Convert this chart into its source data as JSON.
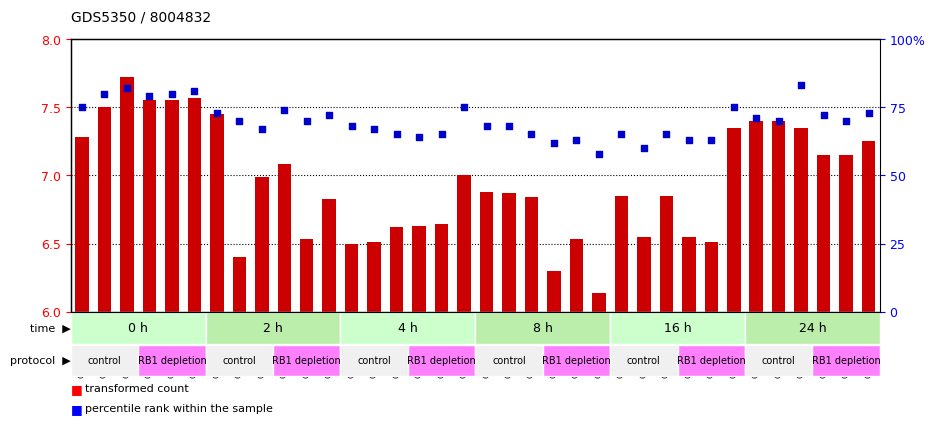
{
  "title": "GDS5350 / 8004832",
  "samples": [
    "GSM1220792",
    "GSM1220798",
    "GSM1220816",
    "GSM1220804",
    "GSM1220810",
    "GSM1220822",
    "GSM1220793",
    "GSM1220799",
    "GSM1220817",
    "GSM1220805",
    "GSM1220811",
    "GSM1220823",
    "GSM1220794",
    "GSM1220800",
    "GSM1220818",
    "GSM1220806",
    "GSM1220812",
    "GSM1220824",
    "GSM1220795",
    "GSM1220801",
    "GSM1220819",
    "GSM1220807",
    "GSM1220813",
    "GSM1220825",
    "GSM1220796",
    "GSM1220802",
    "GSM1220820",
    "GSM1220808",
    "GSM1220814",
    "GSM1220826",
    "GSM1220797",
    "GSM1220803",
    "GSM1220821",
    "GSM1220809",
    "GSM1220815",
    "GSM1220827"
  ],
  "bar_values": [
    7.28,
    7.5,
    7.72,
    7.55,
    7.55,
    7.57,
    7.45,
    6.4,
    6.99,
    7.08,
    6.53,
    6.83,
    6.5,
    6.51,
    6.62,
    6.63,
    6.64,
    7.0,
    6.88,
    6.87,
    6.84,
    6.3,
    6.53,
    6.14,
    6.85,
    6.55,
    6.85,
    6.55,
    6.51,
    7.35,
    7.4,
    7.4,
    7.35,
    7.15,
    7.15,
    7.25
  ],
  "percentile_values": [
    75,
    80,
    82,
    79,
    80,
    81,
    73,
    70,
    67,
    74,
    70,
    72,
    68,
    67,
    65,
    64,
    65,
    75,
    68,
    68,
    65,
    62,
    63,
    58,
    65,
    60,
    65,
    63,
    63,
    75,
    71,
    70,
    83,
    72,
    70,
    73
  ],
  "ylim_left": [
    6.0,
    8.0
  ],
  "ylim_right": [
    0,
    100
  ],
  "bar_color": "#cc0000",
  "dot_color": "#0000cc",
  "bg_color": "#ffffff",
  "grid_color": "#000000",
  "time_groups": [
    {
      "label": "0 h",
      "start": 0,
      "end": 6
    },
    {
      "label": "2 h",
      "start": 6,
      "end": 12
    },
    {
      "label": "4 h",
      "start": 12,
      "end": 18
    },
    {
      "label": "8 h",
      "start": 18,
      "end": 24
    },
    {
      "label": "16 h",
      "start": 24,
      "end": 30
    },
    {
      "label": "24 h",
      "start": 30,
      "end": 36
    }
  ],
  "protocol_groups": [
    {
      "label": "control",
      "start": 0,
      "end": 3,
      "color": "#f0f0f0"
    },
    {
      "label": "RB1 depletion",
      "start": 3,
      "end": 6,
      "color": "#ff80ff"
    },
    {
      "label": "control",
      "start": 6,
      "end": 9,
      "color": "#f0f0f0"
    },
    {
      "label": "RB1 depletion",
      "start": 9,
      "end": 12,
      "color": "#ff80ff"
    },
    {
      "label": "control",
      "start": 12,
      "end": 15,
      "color": "#f0f0f0"
    },
    {
      "label": "RB1 depletion",
      "start": 15,
      "end": 18,
      "color": "#ff80ff"
    },
    {
      "label": "control",
      "start": 18,
      "end": 21,
      "color": "#f0f0f0"
    },
    {
      "label": "RB1 depletion",
      "start": 21,
      "end": 24,
      "color": "#ff80ff"
    },
    {
      "label": "control",
      "start": 24,
      "end": 27,
      "color": "#f0f0f0"
    },
    {
      "label": "RB1 depletion",
      "start": 27,
      "end": 30,
      "color": "#ff80ff"
    },
    {
      "label": "control",
      "start": 30,
      "end": 33,
      "color": "#f0f0f0"
    },
    {
      "label": "RB1 depletion",
      "start": 33,
      "end": 36,
      "color": "#ff80ff"
    }
  ],
  "time_bg_color": "#ccffcc",
  "time_darker_bg": "#99ee99",
  "xlabel": "",
  "left_yticks": [
    6.0,
    6.5,
    7.0,
    7.5,
    8.0
  ],
  "right_yticks": [
    0,
    25,
    50,
    75,
    100
  ],
  "right_yticklabels": [
    "0",
    "25",
    "50",
    "75",
    "100%"
  ]
}
